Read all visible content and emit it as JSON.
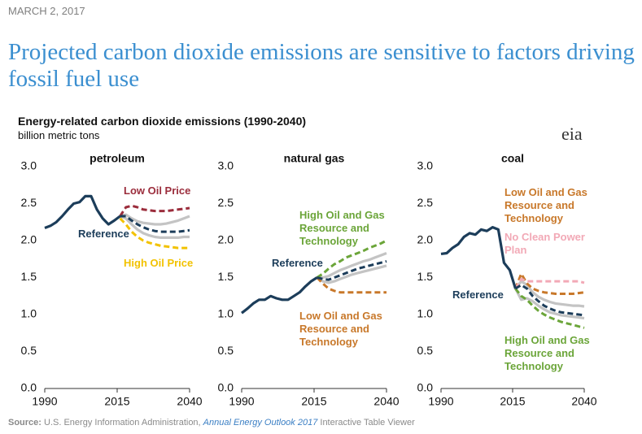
{
  "date": "MARCH 2, 2017",
  "headline": "Projected carbon dioxide emissions are sensitive to factors driving fossil fuel use",
  "chart_title": "Energy-related carbon dioxide emissions (1990-2040)",
  "unit": "billion metric tons",
  "logo": "eia",
  "source": {
    "label": "Source:",
    "text": " U.S. Energy Information Administration, ",
    "link": "Annual Energy Outlook 2017",
    "tail": " Interactive Table Viewer"
  },
  "chart_data": [
    {
      "type": "line",
      "title": "petroleum",
      "x": [
        1990,
        1992,
        1994,
        1996,
        1998,
        2000,
        2002,
        2004,
        2006,
        2008,
        2010,
        2012,
        2014,
        2016,
        2018,
        2020,
        2022,
        2024,
        2026,
        2028,
        2030,
        2032,
        2034,
        2036,
        2038,
        2040
      ],
      "xlim": [
        1990,
        2040
      ],
      "xticks": [
        1990,
        2015,
        2040
      ],
      "ylim": [
        0,
        3
      ],
      "yticks": [
        {
          "value": 0,
          "label": "0.0"
        },
        {
          "value": 0.5,
          "label": "0.5"
        },
        {
          "value": 1,
          "label": "1.0"
        },
        {
          "value": 1.5,
          "label": "1.5"
        },
        {
          "value": 2,
          "label": "2.0"
        },
        {
          "value": 2.5,
          "label": "2.5"
        },
        {
          "value": 3,
          "label": "3.0"
        }
      ],
      "series": [
        {
          "color": "#c4c4c4",
          "values": [
            null,
            null,
            null,
            null,
            null,
            null,
            null,
            null,
            null,
            null,
            null,
            null,
            null,
            2.33,
            2.35,
            2.3,
            2.26,
            2.24,
            2.23,
            2.22,
            2.22,
            2.23,
            2.25,
            2.27,
            2.3,
            2.33
          ]
        },
        {
          "color": "#c4c4c4",
          "values": [
            null,
            null,
            null,
            null,
            null,
            null,
            null,
            null,
            null,
            null,
            null,
            null,
            null,
            2.33,
            2.3,
            2.22,
            2.15,
            2.1,
            2.07,
            2.05,
            2.04,
            2.04,
            2.04,
            2.04,
            2.05,
            2.05
          ]
        },
        {
          "name": "Low Oil Price",
          "color": "#9b2d3c",
          "dashed": true,
          "values": [
            null,
            null,
            null,
            null,
            null,
            null,
            null,
            null,
            null,
            null,
            null,
            null,
            null,
            2.33,
            2.45,
            2.47,
            2.45,
            2.42,
            2.41,
            2.4,
            2.4,
            2.4,
            2.41,
            2.42,
            2.43,
            2.44
          ]
        },
        {
          "name": "High Oil Price",
          "color": "#f2c200",
          "dashed": true,
          "values": [
            null,
            null,
            null,
            null,
            null,
            null,
            null,
            null,
            null,
            null,
            null,
            null,
            null,
            2.3,
            2.22,
            2.12,
            2.05,
            2.0,
            1.97,
            1.95,
            1.93,
            1.92,
            1.91,
            1.9,
            1.9,
            1.9
          ]
        },
        {
          "name": "Reference",
          "color": "#1c3d5a",
          "dashed": true,
          "values": [
            null,
            null,
            null,
            null,
            null,
            null,
            null,
            null,
            null,
            null,
            null,
            null,
            null,
            2.33,
            2.33,
            2.27,
            2.22,
            2.18,
            2.15,
            2.13,
            2.12,
            2.12,
            2.12,
            2.12,
            2.13,
            2.14
          ]
        },
        {
          "color": "#1c3d5a",
          "values": [
            2.17,
            2.2,
            2.25,
            2.33,
            2.42,
            2.5,
            2.52,
            2.6,
            2.6,
            2.42,
            2.3,
            2.22,
            2.27,
            2.33,
            null,
            null,
            null,
            null,
            null,
            null,
            null,
            null,
            null,
            null,
            null,
            null
          ]
        }
      ]
    },
    {
      "type": "line",
      "title": "natural gas",
      "x": [
        1990,
        1992,
        1994,
        1996,
        1998,
        2000,
        2002,
        2004,
        2006,
        2008,
        2010,
        2012,
        2014,
        2016,
        2018,
        2020,
        2022,
        2024,
        2026,
        2028,
        2030,
        2032,
        2034,
        2036,
        2038,
        2040
      ],
      "xlim": [
        1990,
        2040
      ],
      "xticks": [
        1990,
        2015,
        2040
      ],
      "ylim": [
        0,
        3
      ],
      "yticks": [
        {
          "value": 0,
          "label": "0.0"
        },
        {
          "value": 0.5,
          "label": "0.5"
        },
        {
          "value": 1,
          "label": "1.0"
        },
        {
          "value": 1.5,
          "label": "1.5"
        },
        {
          "value": 2,
          "label": "2.0"
        },
        {
          "value": 2.5,
          "label": "2.5"
        },
        {
          "value": 3,
          "label": "3.0"
        }
      ],
      "series": [
        {
          "color": "#c4c4c4",
          "values": [
            null,
            null,
            null,
            null,
            null,
            null,
            null,
            null,
            null,
            null,
            null,
            null,
            null,
            1.5,
            1.5,
            1.52,
            1.56,
            1.6,
            1.63,
            1.66,
            1.69,
            1.72,
            1.74,
            1.77,
            1.8,
            1.83
          ]
        },
        {
          "color": "#c4c4c4",
          "values": [
            null,
            null,
            null,
            null,
            null,
            null,
            null,
            null,
            null,
            null,
            null,
            null,
            null,
            1.5,
            1.45,
            1.43,
            1.45,
            1.48,
            1.51,
            1.54,
            1.56,
            1.58,
            1.6,
            1.62,
            1.64,
            1.66
          ]
        },
        {
          "name": "High Oil and Gas Resource and Technology",
          "color": "#6ba539",
          "dashed": true,
          "values": [
            null,
            null,
            null,
            null,
            null,
            null,
            null,
            null,
            null,
            null,
            null,
            null,
            null,
            1.5,
            1.55,
            1.62,
            1.68,
            1.72,
            1.77,
            1.8,
            1.83,
            1.86,
            1.9,
            1.93,
            1.96,
            2.0
          ]
        },
        {
          "name": "Low Oil and Gas Resource and Technology",
          "color": "#c8782a",
          "dashed": true,
          "values": [
            null,
            null,
            null,
            null,
            null,
            null,
            null,
            null,
            null,
            null,
            null,
            null,
            null,
            1.5,
            1.42,
            1.35,
            1.32,
            1.3,
            1.3,
            1.3,
            1.3,
            1.3,
            1.3,
            1.3,
            1.3,
            1.3
          ]
        },
        {
          "name": "Reference",
          "color": "#1c3d5a",
          "dashed": true,
          "values": [
            null,
            null,
            null,
            null,
            null,
            null,
            null,
            null,
            null,
            null,
            null,
            null,
            null,
            1.5,
            1.48,
            1.47,
            1.5,
            1.53,
            1.56,
            1.59,
            1.62,
            1.64,
            1.66,
            1.68,
            1.7,
            1.72
          ]
        },
        {
          "color": "#1c3d5a",
          "values": [
            1.02,
            1.08,
            1.15,
            1.2,
            1.2,
            1.25,
            1.22,
            1.2,
            1.2,
            1.25,
            1.3,
            1.38,
            1.45,
            1.5,
            null,
            null,
            null,
            null,
            null,
            null,
            null,
            null,
            null,
            null,
            null,
            null
          ]
        }
      ]
    },
    {
      "type": "line",
      "title": "coal",
      "x": [
        1990,
        1992,
        1994,
        1996,
        1998,
        2000,
        2002,
        2004,
        2006,
        2008,
        2010,
        2012,
        2014,
        2016,
        2018,
        2020,
        2022,
        2024,
        2026,
        2028,
        2030,
        2032,
        2034,
        2036,
        2038,
        2040
      ],
      "xlim": [
        1990,
        2040
      ],
      "xticks": [
        1990,
        2015,
        2040
      ],
      "ylim": [
        0,
        3
      ],
      "yticks": [
        {
          "value": 0,
          "label": "0.0"
        },
        {
          "value": 0.5,
          "label": "0.5"
        },
        {
          "value": 1,
          "label": "1.0"
        },
        {
          "value": 1.5,
          "label": "1.5"
        },
        {
          "value": 2,
          "label": "2.0"
        },
        {
          "value": 2.5,
          "label": "2.5"
        },
        {
          "value": 3,
          "label": "3.0"
        }
      ],
      "series": [
        {
          "color": "#c4c4c4",
          "values": [
            null,
            null,
            null,
            null,
            null,
            null,
            null,
            null,
            null,
            null,
            null,
            null,
            null,
            1.35,
            1.45,
            1.4,
            1.3,
            1.24,
            1.2,
            1.17,
            1.15,
            1.14,
            1.13,
            1.12,
            1.12,
            1.11
          ]
        },
        {
          "color": "#c4c4c4",
          "values": [
            null,
            null,
            null,
            null,
            null,
            null,
            null,
            null,
            null,
            null,
            null,
            null,
            null,
            1.35,
            1.2,
            1.22,
            1.18,
            1.12,
            1.07,
            1.03,
            1.01,
            0.99,
            0.98,
            0.97,
            0.96,
            0.95
          ]
        },
        {
          "name": "Low Oil and Gas Resource and Technology",
          "color": "#c8782a",
          "dashed": true,
          "values": [
            null,
            null,
            null,
            null,
            null,
            null,
            null,
            null,
            null,
            null,
            null,
            null,
            null,
            1.35,
            1.55,
            1.42,
            1.35,
            1.32,
            1.3,
            1.29,
            1.28,
            1.28,
            1.28,
            1.28,
            1.29,
            1.3
          ]
        },
        {
          "name": "No Clean Power Plan",
          "color": "#f2a9b6",
          "dashed": true,
          "values": [
            null,
            null,
            null,
            null,
            null,
            null,
            null,
            null,
            null,
            null,
            null,
            null,
            null,
            1.35,
            1.48,
            1.45,
            1.45,
            1.45,
            1.45,
            1.45,
            1.45,
            1.45,
            1.45,
            1.45,
            1.45,
            1.43
          ]
        },
        {
          "name": "High Oil and Gas Resource and Technology",
          "color": "#6ba539",
          "dashed": true,
          "values": [
            null,
            null,
            null,
            null,
            null,
            null,
            null,
            null,
            null,
            null,
            null,
            null,
            null,
            1.35,
            1.25,
            1.2,
            1.12,
            1.05,
            1.0,
            0.96,
            0.93,
            0.9,
            0.88,
            0.86,
            0.84,
            0.82
          ]
        },
        {
          "name": "Reference",
          "color": "#1c3d5a",
          "dashed": true,
          "values": [
            null,
            null,
            null,
            null,
            null,
            null,
            null,
            null,
            null,
            null,
            null,
            null,
            null,
            1.35,
            1.4,
            1.35,
            1.25,
            1.18,
            1.12,
            1.08,
            1.05,
            1.03,
            1.02,
            1.01,
            1.0,
            0.99
          ]
        },
        {
          "color": "#1c3d5a",
          "values": [
            1.82,
            1.83,
            1.9,
            1.95,
            2.05,
            2.1,
            2.08,
            2.15,
            2.13,
            2.18,
            2.15,
            1.7,
            1.6,
            1.35,
            null,
            null,
            null,
            null,
            null,
            null,
            null,
            null,
            null,
            null,
            null,
            null
          ]
        }
      ]
    }
  ]
}
